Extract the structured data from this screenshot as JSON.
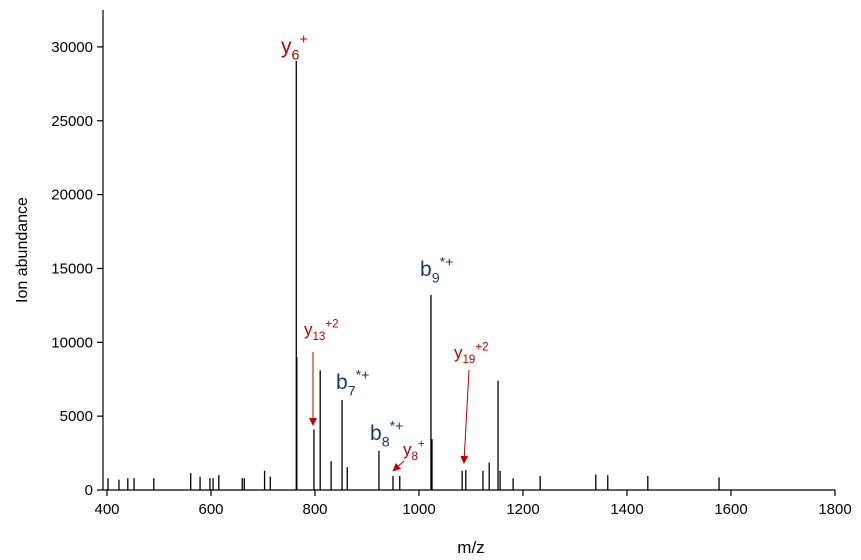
{
  "chart_data": {
    "type": "stem",
    "x_label": "m/z",
    "y_label": "Ion abundance",
    "xlim": [
      400,
      1800
    ],
    "ylim": [
      0,
      32500
    ],
    "xticks": [
      400,
      600,
      800,
      1000,
      1200,
      1400,
      1600,
      1800
    ],
    "yticks": [
      0,
      5000,
      10000,
      15000,
      20000,
      25000,
      30000
    ],
    "color": "#000000",
    "x": [
      402,
      423,
      440,
      452,
      490,
      561,
      579,
      598,
      604,
      615,
      660,
      664,
      703,
      714,
      764,
      765,
      798,
      810,
      831,
      852,
      862,
      923,
      950,
      963,
      1023,
      1025,
      1083,
      1090,
      1123,
      1135,
      1152,
      1156,
      1181,
      1233,
      1340,
      1363,
      1440,
      1577
    ],
    "values": [
      800,
      700,
      800,
      800,
      800,
      1150,
      900,
      800,
      800,
      1000,
      800,
      800,
      1300,
      900,
      29050,
      9000,
      4100,
      8100,
      1950,
      6100,
      1550,
      2650,
      950,
      950,
      13200,
      3450,
      1300,
      1350,
      1300,
      1850,
      7400,
      1300,
      800,
      950,
      1050,
      1000,
      950,
      850
    ],
    "annotations": [
      {
        "label": "y",
        "sub": "6",
        "sup": "+",
        "color": "#c00000"
      },
      {
        "label": "y",
        "sub": "13",
        "sup": "+2",
        "color": "#c00000"
      },
      {
        "label": "b",
        "sub": "7",
        "sup": "*+",
        "color": "#1f3864"
      },
      {
        "label": "b",
        "sub": "8",
        "sup": "*+",
        "color": "#1f3864"
      },
      {
        "label": "y",
        "sub": "8",
        "sup": "+",
        "color": "#c00000"
      },
      {
        "label": "b",
        "sub": "9",
        "sup": "*+",
        "color": "#1f3864"
      },
      {
        "label": "y",
        "sub": "19",
        "sup": "+2",
        "color": "#c00000"
      }
    ]
  }
}
